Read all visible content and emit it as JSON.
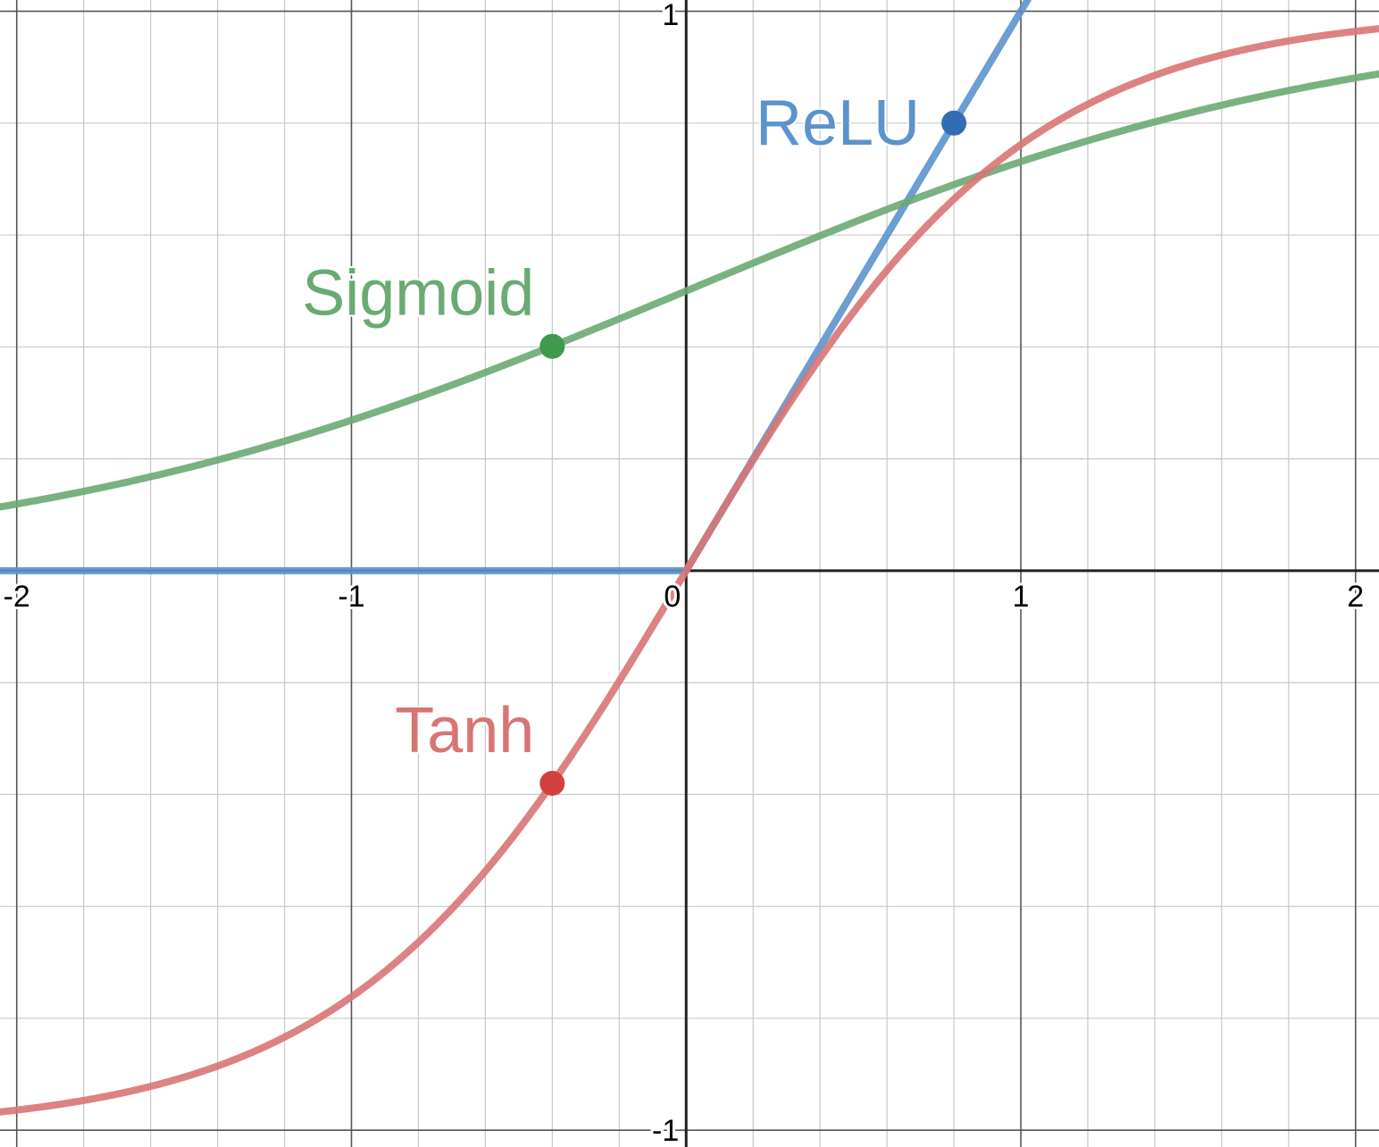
{
  "chart_data": {
    "type": "line",
    "title": "",
    "xlabel": "",
    "ylabel": "",
    "xlim": [
      -2.05,
      2.07
    ],
    "ylim": [
      -1.03,
      1.02
    ],
    "grid": true,
    "grid_minor_step": 0.2,
    "x_ticks": [
      {
        "value": -2,
        "label": "-2"
      },
      {
        "value": -1,
        "label": "-1"
      },
      {
        "value": 0,
        "label": "0"
      },
      {
        "value": 1,
        "label": "1"
      },
      {
        "value": 2,
        "label": "2"
      }
    ],
    "y_ticks": [
      {
        "value": 1,
        "label": "1"
      },
      {
        "value": -1,
        "label": "-1"
      }
    ],
    "series": [
      {
        "name": "ReLU",
        "function": "relu",
        "color": "#5b93cc",
        "point": {
          "x": 0.8,
          "y": 0.8,
          "color": "#2f6db5"
        }
      },
      {
        "name": "Sigmoid",
        "function": "sigmoid",
        "color": "#6aaa73",
        "point": {
          "x": -0.4,
          "y": 0.401,
          "color": "#3f9a4b"
        }
      },
      {
        "name": "Tanh",
        "function": "tanh",
        "color": "#d97474",
        "point": {
          "x": -0.4,
          "y": -0.38,
          "color": "#d33f3f"
        }
      }
    ]
  }
}
